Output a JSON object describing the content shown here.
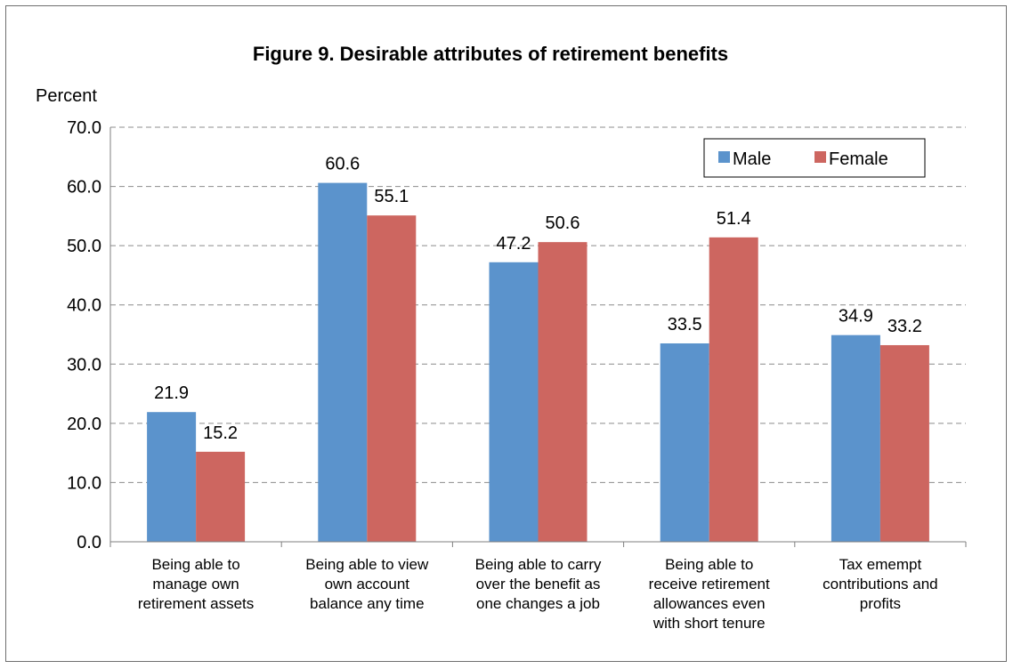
{
  "chart_data": {
    "type": "bar",
    "title": "Figure 9. Desirable attributes of retirement benefits",
    "ylabel": "Percent",
    "xlabel": "",
    "ylim": [
      0,
      70
    ],
    "yticks": [
      "0.0",
      "10.0",
      "20.0",
      "30.0",
      "40.0",
      "50.0",
      "60.0",
      "70.0"
    ],
    "grid": true,
    "legend_position": "top-right",
    "categories": [
      [
        "Being able to",
        "manage own",
        "retirement assets"
      ],
      [
        "Being able to view",
        "own account",
        "balance any time"
      ],
      [
        "Being able to carry",
        "over the benefit as",
        "one changes a job"
      ],
      [
        "Being able to",
        "receive retirement",
        "allowances even",
        "with short tenure"
      ],
      [
        "Tax emempt",
        "contributions and",
        "profits"
      ]
    ],
    "series": [
      {
        "name": "Male",
        "color": "#5b93cc",
        "values": [
          21.9,
          60.6,
          47.2,
          33.5,
          34.9
        ],
        "labels": [
          "21.9",
          "60.6",
          "47.2",
          "33.5",
          "34.9"
        ]
      },
      {
        "name": "Female",
        "color": "#cd6660",
        "values": [
          15.2,
          55.1,
          50.6,
          51.4,
          33.2
        ],
        "labels": [
          "15.2",
          "55.1",
          "50.6",
          "51.4",
          "33.2"
        ]
      }
    ]
  }
}
